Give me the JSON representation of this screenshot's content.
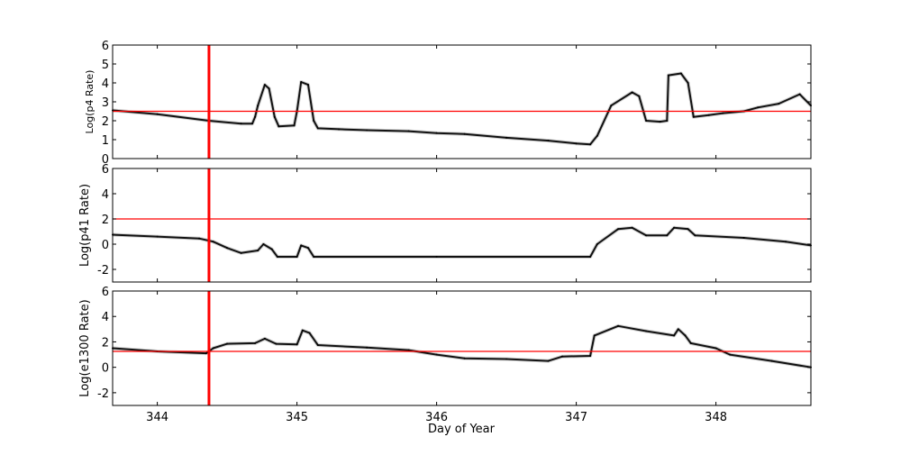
{
  "chart_data": {
    "xlabel": "Day of Year",
    "xlim": [
      343.68,
      348.68
    ],
    "xticks": [
      344,
      345,
      346,
      347,
      348
    ],
    "vertical_marker": {
      "x": 344.37,
      "color": "#ff0000"
    },
    "panels": [
      {
        "type": "scatter",
        "ylabel": "Log(p4 Rate)",
        "ylim": [
          0,
          6
        ],
        "yticks": [
          0,
          1,
          2,
          3,
          4,
          5,
          6
        ],
        "threshold": 2.5,
        "threshold_color": "#ff0000",
        "points": [
          [
            343.68,
            2.55
          ],
          [
            344.0,
            2.35
          ],
          [
            344.37,
            2.0
          ],
          [
            344.6,
            1.85
          ],
          [
            344.68,
            1.85
          ],
          [
            344.7,
            2.2
          ],
          [
            344.72,
            2.8
          ],
          [
            344.77,
            3.9
          ],
          [
            344.8,
            3.7
          ],
          [
            344.84,
            2.2
          ],
          [
            344.87,
            1.7
          ],
          [
            344.98,
            1.75
          ],
          [
            345.0,
            2.5
          ],
          [
            345.03,
            4.05
          ],
          [
            345.08,
            3.9
          ],
          [
            345.12,
            2.0
          ],
          [
            345.15,
            1.6
          ],
          [
            345.3,
            1.55
          ],
          [
            345.5,
            1.5
          ],
          [
            345.8,
            1.45
          ],
          [
            346.0,
            1.35
          ],
          [
            346.2,
            1.3
          ],
          [
            346.5,
            1.1
          ],
          [
            346.8,
            0.95
          ],
          [
            347.0,
            0.8
          ],
          [
            347.1,
            0.75
          ],
          [
            347.15,
            1.2
          ],
          [
            347.25,
            2.8
          ],
          [
            347.4,
            3.5
          ],
          [
            347.45,
            3.3
          ],
          [
            347.5,
            2.0
          ],
          [
            347.6,
            1.95
          ],
          [
            347.65,
            2.0
          ],
          [
            347.66,
            4.4
          ],
          [
            347.75,
            4.5
          ],
          [
            347.8,
            4.0
          ],
          [
            347.84,
            2.2
          ],
          [
            347.95,
            2.3
          ],
          [
            348.05,
            2.4
          ],
          [
            348.2,
            2.5
          ],
          [
            348.3,
            2.7
          ],
          [
            348.45,
            2.9
          ],
          [
            348.6,
            3.4
          ],
          [
            348.68,
            2.8
          ]
        ]
      },
      {
        "type": "scatter",
        "ylabel": "Log(p41 Rate)",
        "ylim": [
          -3,
          6
        ],
        "yticks": [
          -2,
          0,
          2,
          4,
          6
        ],
        "threshold": 2,
        "threshold_color": "#ff0000",
        "points": [
          [
            343.68,
            0.75
          ],
          [
            344.0,
            0.6
          ],
          [
            344.3,
            0.45
          ],
          [
            344.4,
            0.2
          ],
          [
            344.5,
            -0.3
          ],
          [
            344.6,
            -0.7
          ],
          [
            344.72,
            -0.5
          ],
          [
            344.76,
            0.0
          ],
          [
            344.82,
            -0.4
          ],
          [
            344.86,
            -1.0
          ],
          [
            345.0,
            -1.0
          ],
          [
            345.03,
            -0.1
          ],
          [
            345.08,
            -0.3
          ],
          [
            345.12,
            -1.0
          ],
          [
            346.0,
            -1.0
          ],
          [
            347.1,
            -1.0
          ],
          [
            347.15,
            0.0
          ],
          [
            347.3,
            1.2
          ],
          [
            347.4,
            1.3
          ],
          [
            347.5,
            0.7
          ],
          [
            347.65,
            0.7
          ],
          [
            347.7,
            1.3
          ],
          [
            347.8,
            1.2
          ],
          [
            347.85,
            0.7
          ],
          [
            348.2,
            0.5
          ],
          [
            348.5,
            0.2
          ],
          [
            348.68,
            -0.1
          ]
        ]
      },
      {
        "type": "scatter",
        "ylabel": "Log(e1300 Rate)",
        "ylim": [
          -3,
          6
        ],
        "yticks": [
          -2,
          0,
          2,
          4,
          6
        ],
        "threshold": 1.25,
        "threshold_color": "#ff0000",
        "points": [
          [
            343.68,
            1.5
          ],
          [
            344.0,
            1.25
          ],
          [
            344.35,
            1.1
          ],
          [
            344.4,
            1.5
          ],
          [
            344.5,
            1.85
          ],
          [
            344.7,
            1.9
          ],
          [
            344.77,
            2.25
          ],
          [
            344.85,
            1.85
          ],
          [
            345.0,
            1.8
          ],
          [
            345.04,
            2.9
          ],
          [
            345.09,
            2.7
          ],
          [
            345.15,
            1.75
          ],
          [
            345.5,
            1.55
          ],
          [
            345.8,
            1.35
          ],
          [
            346.0,
            1.0
          ],
          [
            346.2,
            0.7
          ],
          [
            346.5,
            0.65
          ],
          [
            346.8,
            0.5
          ],
          [
            346.9,
            0.85
          ],
          [
            347.1,
            0.9
          ],
          [
            347.13,
            2.5
          ],
          [
            347.3,
            3.25
          ],
          [
            347.5,
            2.85
          ],
          [
            347.7,
            2.5
          ],
          [
            347.73,
            3.0
          ],
          [
            347.78,
            2.5
          ],
          [
            347.82,
            1.9
          ],
          [
            348.0,
            1.5
          ],
          [
            348.1,
            1.0
          ],
          [
            348.4,
            0.5
          ],
          [
            348.68,
            0.0
          ]
        ]
      }
    ]
  }
}
